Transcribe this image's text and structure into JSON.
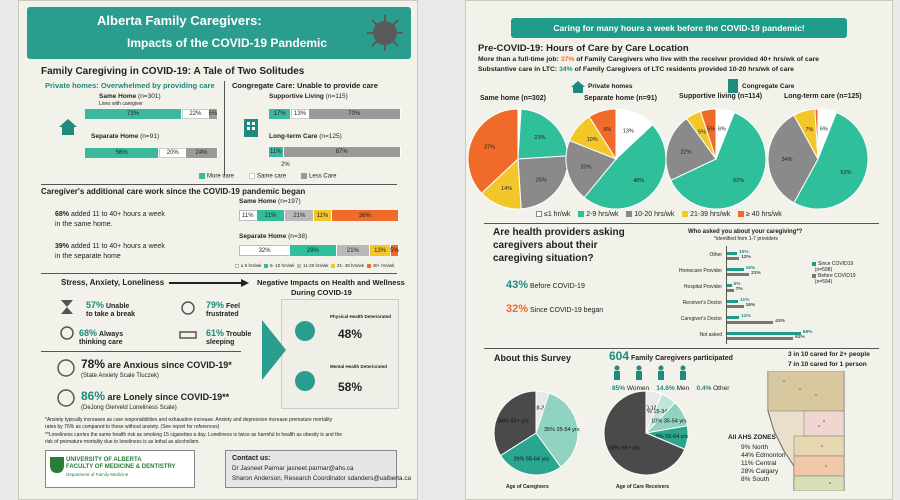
{
  "left": {
    "title": "Alberta Family Caregivers:",
    "subtitle": "Impacts of the COVID-19 Pandemic",
    "section1_title": "Family Caregiving in COVID-19: A Tale of Two Solitudes",
    "private_heading": "Private homes: Overwhelmed by providing care",
    "congregate_heading": "Congregate Care: Unable to provide care",
    "same_home_label": "Same Home",
    "same_home_n": "(n=301)",
    "same_home_note": "Lives with caregiver",
    "same_home_vals": [
      "73%",
      "22%",
      "5%"
    ],
    "separate_home_label": "Separate Home",
    "separate_home_n": "(n=91)",
    "separate_home_vals": [
      "56%",
      "20%",
      "24%"
    ],
    "supportive_label": "Supportive Living",
    "supportive_n": "(n=115)",
    "supportive_vals": [
      "17%",
      "13%",
      "70%"
    ],
    "ltc_label": "Long-term Care",
    "ltc_n": "(n=125)",
    "ltc_vals": [
      "11%",
      "87%"
    ],
    "ltc_extra": "2%",
    "legend_more": "More care",
    "legend_same": "Same care",
    "legend_less": "Less Care",
    "section2_title": "Caregiver's additional care work since the COVID-19 pandemic began",
    "add_same_pct": "68%",
    "add_same_text1": "added 11 to 40+ hours a week",
    "add_same_text2": "in the same home.",
    "add_sep_pct": "39%",
    "add_sep_text1": "added 11 to 40+ hours a week",
    "add_sep_text2": "in the separate home",
    "hours_same_label": "Same Home",
    "hours_same_n": "(n=197)",
    "hours_same_vals": [
      "11%",
      "21%",
      "21%",
      "11%",
      "36%"
    ],
    "hours_sep_label": "Separate Home",
    "hours_sep_n": "(n=38)",
    "hours_sep_vals": [
      "32%",
      "29%",
      "21%",
      "13%",
      "5%"
    ],
    "hours_legend": [
      "≤ 5 hrs/wk",
      "6- 10 hrs/wk",
      "11-20 hrs/wk",
      "21- 39 hrs/wk",
      "40+ hrs/wk"
    ],
    "stress_title": "Stress, Anxiety, Loneliness",
    "neg_title1": "Negative Impacts on Health and Wellness",
    "neg_title2": "During COVID-19",
    "s1_pct": "57%",
    "s1_t1": "Unable",
    "s1_t2": "to take a break",
    "s2_pct": "79%",
    "s2_t1": "Feel",
    "s2_t2": "frustrated",
    "s3_pct": "68%",
    "s3_t1": "Always",
    "s3_t2": "thinking care",
    "s4_pct": "61%",
    "s4_t1": "Trouble",
    "s4_t2": "sleeping",
    "anx_pct": "78%",
    "anx_text": "are Anxious since COVID-19*",
    "anx_sub": "(State Anxiety Scale Tluczek)",
    "lon_pct": "86%",
    "lon_text": "are Lonely since COVID-19**",
    "lon_sub": "(DeJong Gierveld Loneliness Scale)",
    "phys_label": "Physical Health Deteriorated",
    "phys_pct": "48%",
    "ment_label": "Mental Health Deteriorated",
    "ment_pct": "58%",
    "foot1": "*Anxiety typically increases as care responsibilities and exhaustion increase. Anxiety and depression increase premature mortality",
    "foot2": "rates by 76% as compared to those without anxiety. (See report for references)",
    "foot3": "**Loneliness carries the same health risk as smoking 15 cigarettes a day. Loneliness is twice as harmful to health as obesity is and the",
    "foot4": "risk  of  premature mortality due to loneliness is as lethal as alcoholism.",
    "uni1": "UNIVERSITY OF ALBERTA",
    "uni2": "FACULTY OF MEDICINE & DENTISTRY",
    "uni3": "Department of Family Medicine",
    "contact_title": "Contact us:",
    "contact1": "Dr Jasneet Parmar jasneet.parmar@ahs.ca",
    "contact2": "Sharon Anderson, Research Coordinator sdanders@ualberta.ca"
  },
  "right": {
    "banner": "Caring for many hours a week before the COVID-19 pandemic!",
    "title": "Pre-COVID-19: Hours of Care by Care Location",
    "line1_a": "More than a full-time job: ",
    "line1_b": "37%",
    "line1_c": " of Family Caregivers who live with the receiver provided 40+ hrs/wk of care",
    "line2_a": "Substantive care in LTC: ",
    "line2_b": "34%",
    "line2_c": " of Family Caregivers of LTC residents provided 10-20 hrs/wk of care",
    "private_label": "Private homes",
    "congregate_label": "Congregate Care",
    "pie_labels": [
      "Same home (n=302)",
      "Separate home (n=91)",
      "Supportive living (n=114)",
      "Long-term care (n=125)"
    ],
    "pie_legend": [
      "≤1 hr/wk",
      "2-9 hrs/wk",
      "10-20 hrs/wk",
      "21-39 hrs/wk",
      "≥ 40 hrs/wk"
    ],
    "q_title1": "Are health providers asking",
    "q_title2": "caregivers about their",
    "q_title3": "caregiving situation?",
    "q_before_pct": "43%",
    "q_before_text": "Before COVID-19",
    "q_since_pct": "32%",
    "q_since_text": "Since COVID-19 began",
    "who_title": "Who asked you about your caregiving*?",
    "who_sub": "*identified from 1-7 providers",
    "who_rows": [
      {
        "label": "Other",
        "since": "10%",
        "before": "12%"
      },
      {
        "label": "Homecare Provider",
        "since": "16%",
        "before": "21%"
      },
      {
        "label": "Hospital Provider",
        "since": "5%",
        "before": "7%"
      },
      {
        "label": "Receiver's Doctor",
        "since": "11%",
        "before": "16%"
      },
      {
        "label": "Caregiver's Doctor",
        "since": "12%",
        "before": "43%"
      },
      {
        "label": "Not asked",
        "since": "68%",
        "before": "61%"
      }
    ],
    "who_legend_since": "Since COVID19",
    "who_legend_since_n": "(n=598)",
    "who_legend_before": "Before COVID19",
    "who_legend_before_n": "(n=594)",
    "about_title": "About this Survey",
    "n_count": "604",
    "n_text": "Family Caregivers participated",
    "women_pct": "85%",
    "women_label": "Women",
    "men_pct": "14.6%",
    "men_label": "Men",
    "other_pct": "0.4%",
    "other_label": "Other",
    "age_cg_label": "Age of Caregivers",
    "age_cr_label": "Age of Care Receivers",
    "age_cg_slices": [
      "5% 18-34 yrs",
      "35% 35-54 yrs",
      "26% 55-64 yrs",
      "34% 65+ yrs"
    ],
    "age_cr_slices": [
      "6% 0-14 yrs",
      "6% 15-34 yrs",
      "10% 35-54 yrs",
      "9% 55-64 yrs",
      "68% 65+ yrs"
    ],
    "care_two": "3 in 10 cared for 2+ people",
    "care_ten": "7 in 10 cared for 1 person",
    "zones_title": "All AHS ZONES",
    "zones": [
      "9% North",
      "44% Edmonton",
      "11% Central",
      "28% Calgary",
      "8% South"
    ]
  },
  "chart_data": [
    {
      "type": "pie",
      "title": "Same home (n=302)",
      "categories": [
        "≤1 hr/wk",
        "2-9 hrs/wk",
        "10-20 hrs/wk",
        "21-39 hrs/wk",
        "≥ 40 hrs/wk"
      ],
      "values": [
        1,
        23,
        25,
        14,
        37
      ]
    },
    {
      "type": "pie",
      "title": "Separate home (n=91)",
      "categories": [
        "≤1 hr/wk",
        "2-9 hrs/wk",
        "10-20 hrs/wk",
        "21-39 hrs/wk",
        "≥ 40 hrs/wk"
      ],
      "values": [
        13,
        48,
        20,
        10,
        9
      ]
    },
    {
      "type": "pie",
      "title": "Supportive living (n=114)",
      "categories": [
        "≤1 hr/wk",
        "2-9 hrs/wk",
        "10-20 hrs/wk",
        "21-39 hrs/wk",
        "≥ 40 hrs/wk"
      ],
      "values": [
        6,
        62,
        22,
        5,
        5
      ]
    },
    {
      "type": "pie",
      "title": "Long-term care (n=125)",
      "categories": [
        "≤1 hr/wk",
        "2-9 hrs/wk",
        "10-20 hrs/wk",
        "21-39 hrs/wk",
        "≥ 40 hrs/wk"
      ],
      "values": [
        6,
        52,
        34,
        7,
        1
      ]
    },
    {
      "type": "bar",
      "title": "Who asked you about your caregiving*?",
      "categories": [
        "Other",
        "Homecare Provider",
        "Hospital Provider",
        "Receiver's Doctor",
        "Caregiver's Doctor",
        "Not asked"
      ],
      "series": [
        {
          "name": "Since COVID19",
          "values": [
            10,
            16,
            5,
            11,
            12,
            68
          ]
        },
        {
          "name": "Before COVID19",
          "values": [
            12,
            21,
            7,
            16,
            43,
            61
          ]
        }
      ]
    },
    {
      "type": "pie",
      "title": "Age of Caregivers",
      "categories": [
        "18-34 yrs",
        "35-54 yrs",
        "55-64 yrs",
        "65+ yrs"
      ],
      "values": [
        5,
        35,
        26,
        34
      ]
    },
    {
      "type": "pie",
      "title": "Age of Care Receivers",
      "categories": [
        "0-14 yrs",
        "15-34 yrs",
        "35-54 yrs",
        "55-64 yrs",
        "65+ yrs"
      ],
      "values": [
        6,
        6,
        10,
        9,
        68
      ]
    }
  ]
}
